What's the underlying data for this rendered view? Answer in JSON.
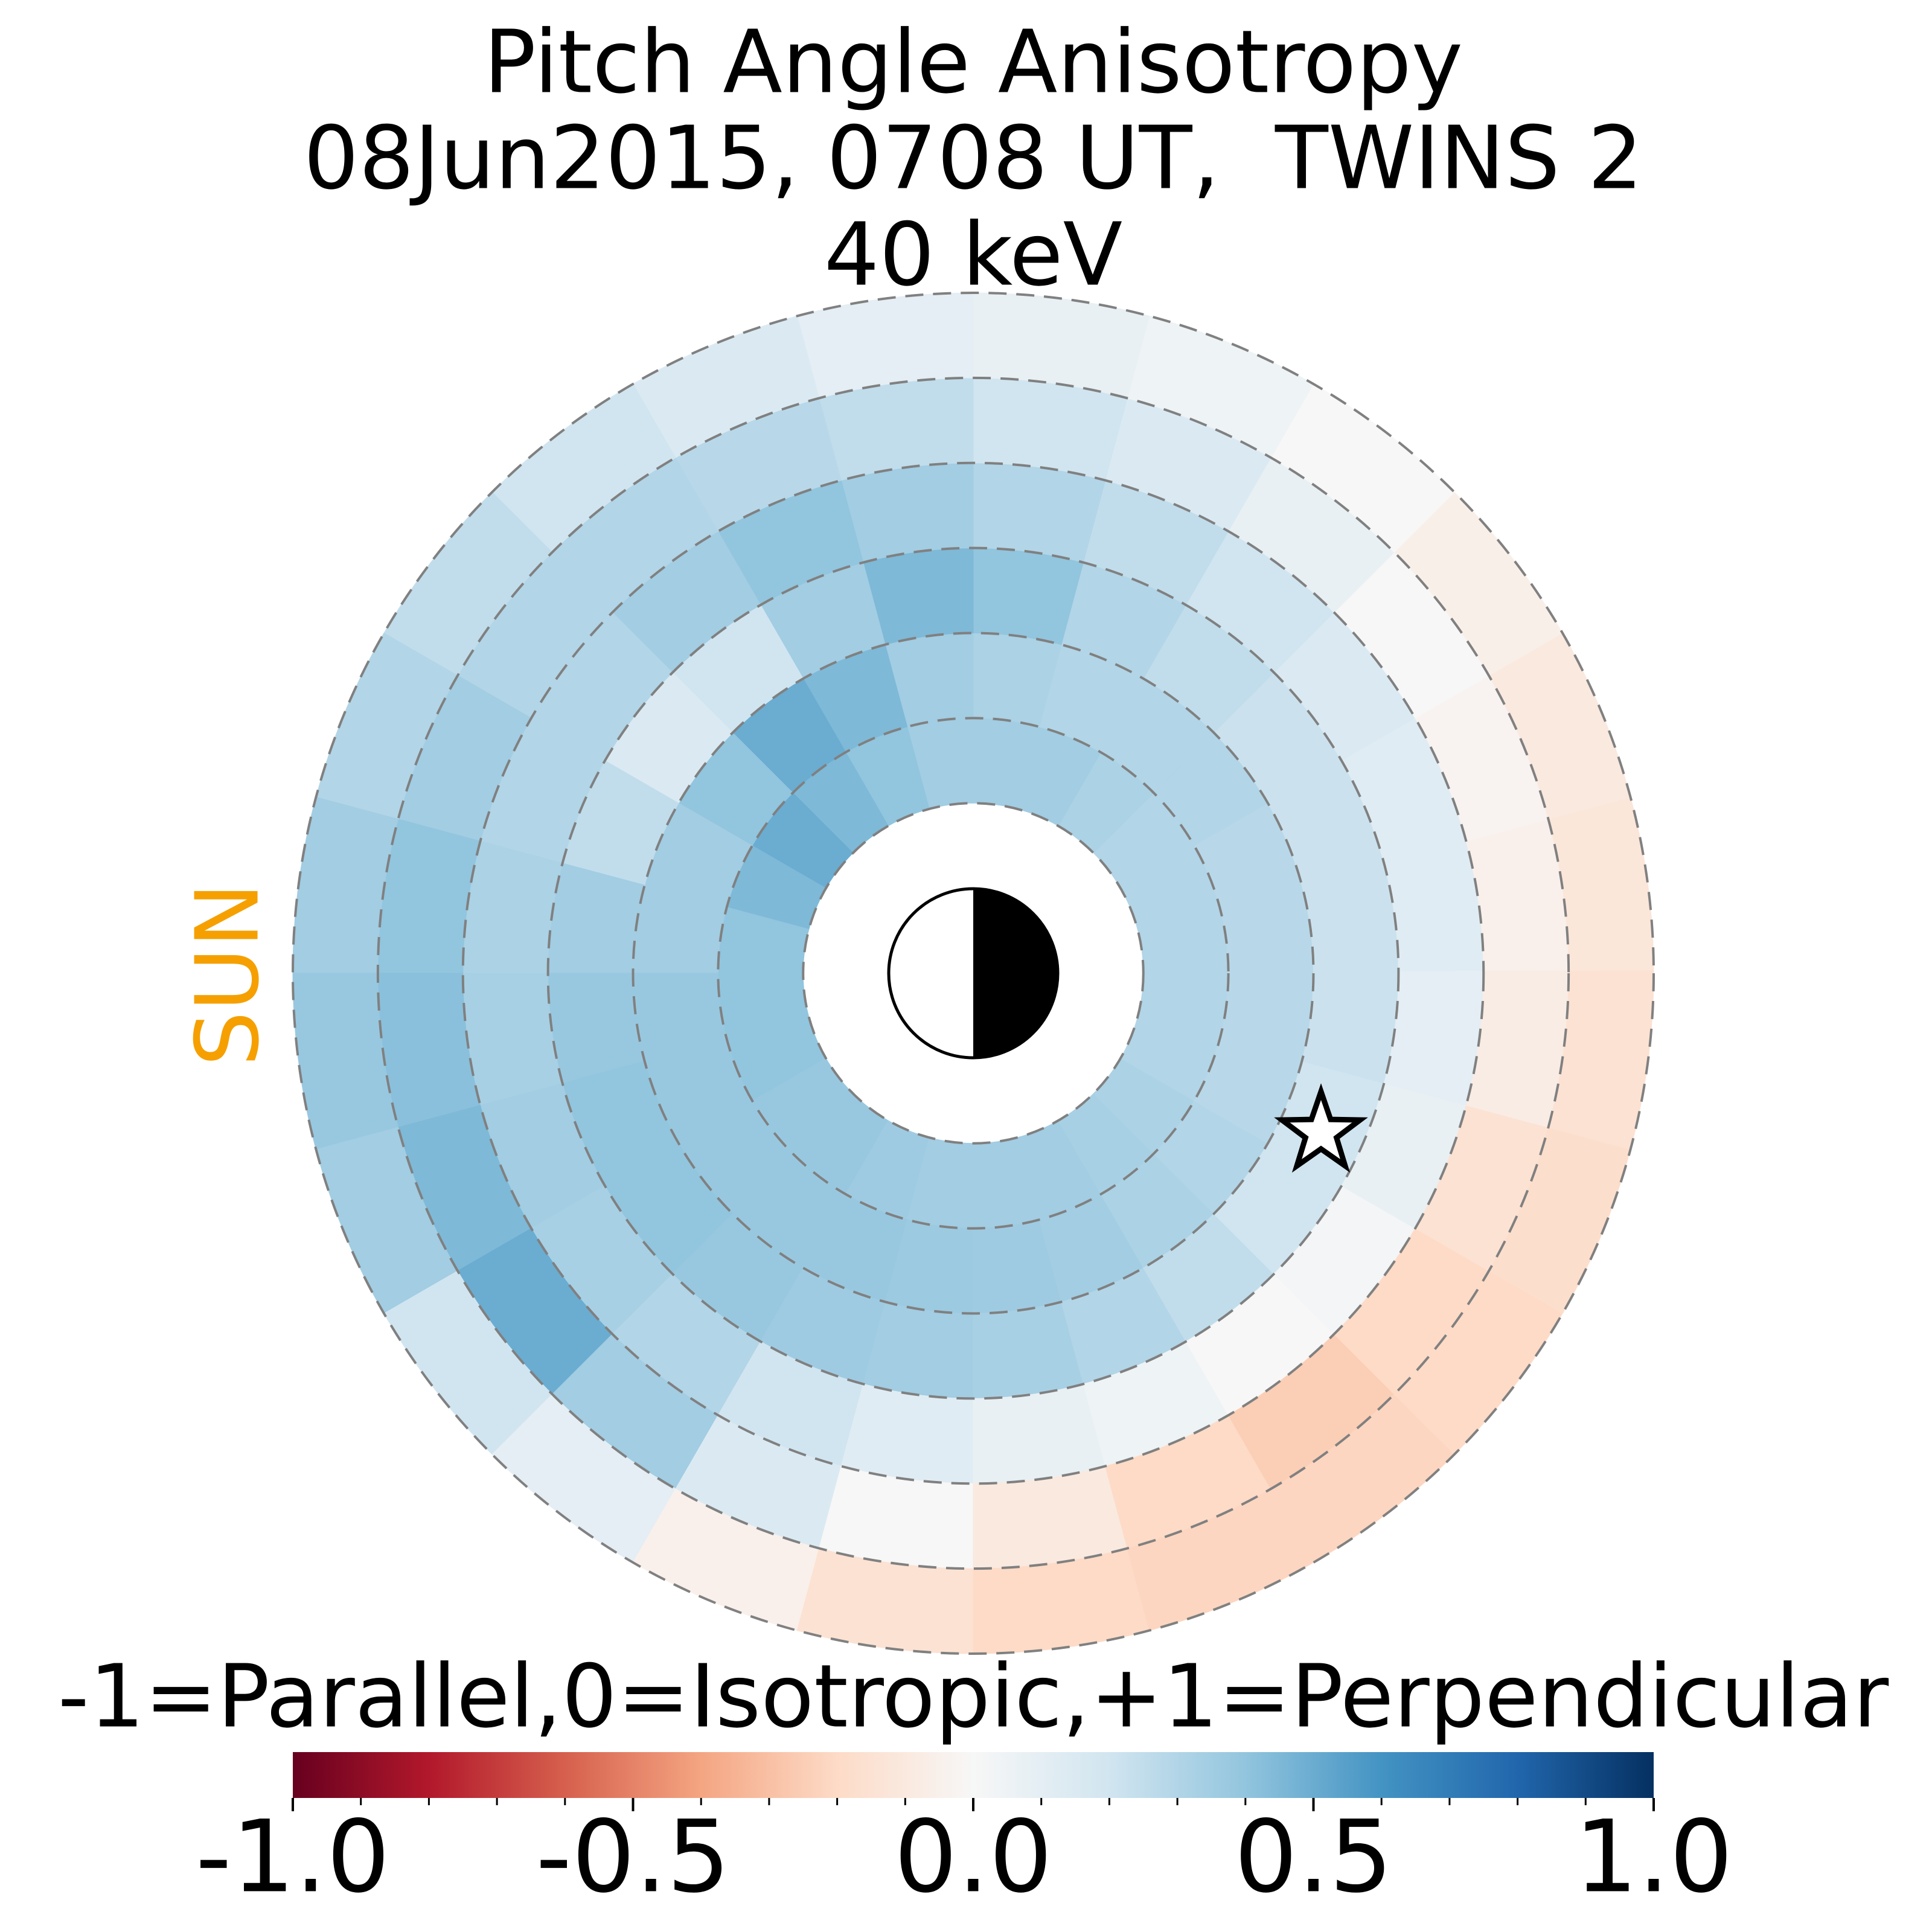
{
  "chart_data": {
    "type": "polar_heatmap",
    "title": [
      "Pitch Angle Anisotropy",
      "08Jun2015, 0708 UT,  TWINS 2",
      "40 keV"
    ],
    "annotations": [
      {
        "text": "SUN",
        "color": "#f5a000"
      }
    ],
    "rlim": [
      0,
      8
    ],
    "rticks": [
      2,
      3,
      4,
      5,
      6,
      7,
      8
    ],
    "values": [
      [
        0.3,
        0.3,
        0.3,
        0.32,
        0.35,
        0.35,
        0.35,
        0.4,
        0.45,
        0.5,
        0.45,
        0.4,
        0.4,
        0.4,
        0.38,
        0.38,
        0.36,
        0.35,
        0.35,
        0.35,
        0.33,
        0.32,
        0.3,
        0.3
      ],
      [
        0.28,
        0.28,
        0.3,
        0.3,
        0.3,
        0.32,
        0.35,
        0.45,
        0.5,
        0.4,
        0.35,
        0.35,
        0.38,
        0.38,
        0.38,
        0.38,
        0.38,
        0.37,
        0.36,
        0.35,
        0.32,
        0.3,
        0.28,
        0.28
      ],
      [
        0.22,
        0.22,
        0.22,
        0.25,
        0.3,
        0.4,
        0.45,
        0.35,
        0.2,
        0.15,
        0.25,
        0.35,
        0.38,
        0.4,
        0.4,
        0.38,
        0.36,
        0.35,
        0.33,
        0.3,
        0.25,
        0.2,
        0.2,
        0.22
      ],
      [
        0.12,
        0.12,
        0.15,
        0.2,
        0.25,
        0.3,
        0.35,
        0.4,
        0.35,
        0.3,
        0.3,
        0.32,
        0.33,
        0.35,
        0.33,
        0.3,
        0.2,
        0.12,
        0.08,
        0.05,
        0.0,
        0.02,
        0.08,
        0.1
      ],
      [
        -0.05,
        -0.03,
        0.0,
        0.08,
        0.15,
        0.2,
        0.25,
        0.28,
        0.3,
        0.3,
        0.35,
        0.4,
        0.42,
        0.45,
        0.5,
        0.35,
        0.15,
        0.0,
        -0.1,
        -0.2,
        -0.25,
        -0.2,
        -0.15,
        -0.08
      ],
      [
        -0.12,
        -0.1,
        -0.06,
        0.0,
        0.05,
        0.08,
        0.1,
        0.15,
        0.2,
        0.25,
        0.3,
        0.35,
        0.38,
        0.35,
        0.2,
        0.1,
        -0.05,
        -0.15,
        -0.2,
        -0.22,
        -0.22,
        -0.2,
        -0.18,
        -0.15
      ]
    ],
    "colorbar": {
      "label": "-1=Parallel,0=Isotropic,+1=Perpendicular",
      "lim": [
        -1,
        1
      ],
      "ticks": [
        {
          "value": -1,
          "label": "-1.0"
        },
        -0.5,
        {
          "value": 0,
          "label": "0.0"
        },
        0.5,
        {
          "value": 1,
          "label": "1.0"
        }
      ],
      "minor_ticks": [
        -0.9,
        -0.8,
        -0.7,
        -0.6,
        -0.4,
        -0.3,
        -0.2,
        -0.1,
        0.1,
        0.2,
        0.3,
        0.4,
        0.6,
        0.7,
        0.8,
        0.9
      ],
      "colormap": [
        "#67001f",
        "#b2182b",
        "#d6604d",
        "#f4a582",
        "#fddbc7",
        "#f7f7f7",
        "#d1e5f0",
        "#92c5de",
        "#4393c3",
        "#2166ac",
        "#053061"
      ]
    }
  }
}
